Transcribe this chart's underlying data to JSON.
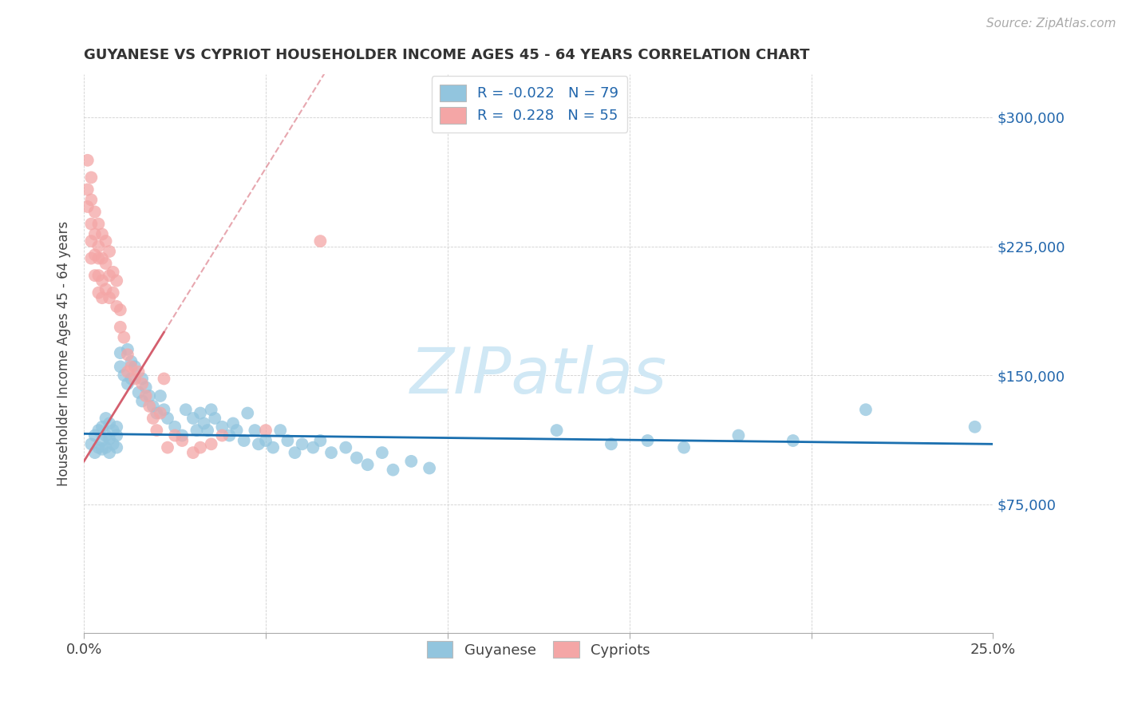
{
  "title": "GUYANESE VS CYPRIOT HOUSEHOLDER INCOME AGES 45 - 64 YEARS CORRELATION CHART",
  "source": "Source: ZipAtlas.com",
  "ylabel": "Householder Income Ages 45 - 64 years",
  "xlim": [
    0.0,
    0.25
  ],
  "ylim": [
    0,
    325000
  ],
  "xtick_positions": [
    0.0,
    0.05,
    0.1,
    0.15,
    0.2,
    0.25
  ],
  "xtick_labels": [
    "0.0%",
    "",
    "",
    "",
    "",
    "25.0%"
  ],
  "ytick_values": [
    75000,
    150000,
    225000,
    300000
  ],
  "ytick_labels": [
    "$75,000",
    "$150,000",
    "$225,000",
    "$300,000"
  ],
  "legend_guyanese_R": "-0.022",
  "legend_guyanese_N": "79",
  "legend_cypriot_R": "0.228",
  "legend_cypriot_N": "55",
  "legend_label1": "Guyanese",
  "legend_label2": "Cypriots",
  "guyanese_color": "#92c5de",
  "cypriot_color": "#f4a6a6",
  "guyanese_line_color": "#1a6faf",
  "cypriot_line_color": "#d45f6e",
  "watermark_color": "#d0e8f5",
  "guyanese_x": [
    0.002,
    0.003,
    0.003,
    0.004,
    0.004,
    0.005,
    0.005,
    0.005,
    0.006,
    0.006,
    0.006,
    0.007,
    0.007,
    0.007,
    0.008,
    0.008,
    0.009,
    0.009,
    0.009,
    0.01,
    0.01,
    0.011,
    0.012,
    0.012,
    0.013,
    0.013,
    0.014,
    0.015,
    0.016,
    0.016,
    0.017,
    0.018,
    0.019,
    0.02,
    0.021,
    0.022,
    0.023,
    0.025,
    0.027,
    0.028,
    0.03,
    0.031,
    0.032,
    0.033,
    0.034,
    0.035,
    0.036,
    0.038,
    0.04,
    0.041,
    0.042,
    0.044,
    0.045,
    0.047,
    0.048,
    0.05,
    0.052,
    0.054,
    0.056,
    0.058,
    0.06,
    0.063,
    0.065,
    0.068,
    0.072,
    0.075,
    0.078,
    0.082,
    0.085,
    0.09,
    0.095,
    0.13,
    0.145,
    0.155,
    0.165,
    0.18,
    0.195,
    0.215,
    0.245
  ],
  "guyanese_y": [
    110000,
    105000,
    115000,
    108000,
    118000,
    112000,
    120000,
    107000,
    115000,
    125000,
    108000,
    113000,
    122000,
    105000,
    118000,
    110000,
    120000,
    108000,
    115000,
    155000,
    163000,
    150000,
    165000,
    145000,
    158000,
    148000,
    155000,
    140000,
    148000,
    135000,
    143000,
    138000,
    132000,
    128000,
    138000,
    130000,
    125000,
    120000,
    115000,
    130000,
    125000,
    118000,
    128000,
    122000,
    118000,
    130000,
    125000,
    120000,
    115000,
    122000,
    118000,
    112000,
    128000,
    118000,
    110000,
    112000,
    108000,
    118000,
    112000,
    105000,
    110000,
    108000,
    112000,
    105000,
    108000,
    102000,
    98000,
    105000,
    95000,
    100000,
    96000,
    118000,
    110000,
    112000,
    108000,
    115000,
    112000,
    130000,
    120000
  ],
  "cypriot_x": [
    0.001,
    0.001,
    0.001,
    0.002,
    0.002,
    0.002,
    0.002,
    0.002,
    0.003,
    0.003,
    0.003,
    0.003,
    0.004,
    0.004,
    0.004,
    0.004,
    0.004,
    0.005,
    0.005,
    0.005,
    0.005,
    0.006,
    0.006,
    0.006,
    0.007,
    0.007,
    0.007,
    0.008,
    0.008,
    0.009,
    0.009,
    0.01,
    0.01,
    0.011,
    0.012,
    0.012,
    0.013,
    0.014,
    0.015,
    0.016,
    0.017,
    0.018,
    0.019,
    0.02,
    0.021,
    0.022,
    0.023,
    0.025,
    0.027,
    0.03,
    0.032,
    0.035,
    0.038,
    0.05,
    0.065
  ],
  "cypriot_y": [
    275000,
    258000,
    248000,
    265000,
    252000,
    238000,
    228000,
    218000,
    245000,
    232000,
    220000,
    208000,
    238000,
    225000,
    218000,
    208000,
    198000,
    232000,
    218000,
    205000,
    195000,
    228000,
    215000,
    200000,
    222000,
    208000,
    195000,
    210000,
    198000,
    205000,
    190000,
    188000,
    178000,
    172000,
    162000,
    152000,
    155000,
    148000,
    152000,
    145000,
    138000,
    132000,
    125000,
    118000,
    128000,
    148000,
    108000,
    115000,
    112000,
    105000,
    108000,
    110000,
    115000,
    118000,
    228000
  ]
}
